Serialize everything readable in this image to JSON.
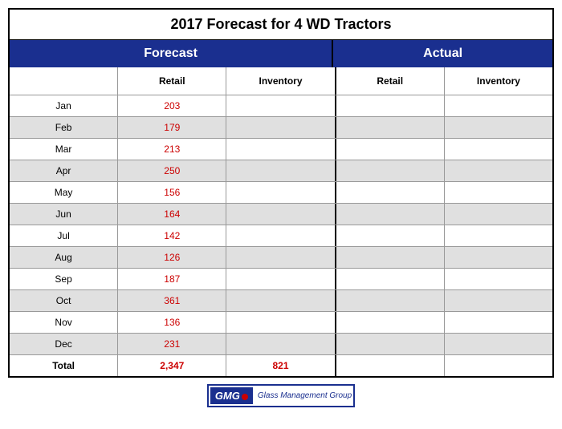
{
  "title": "2017 Forecast for 4 WD Tractors",
  "sections": {
    "forecast": "Forecast",
    "actual": "Actual"
  },
  "columns": {
    "month_blank": "",
    "retail": "Retail",
    "inventory": "Inventory"
  },
  "colors": {
    "header_bg": "#1a2f8f",
    "header_text": "#ffffff",
    "value_text": "#cc0000",
    "row_even": "#e0e0e0",
    "row_odd": "#ffffff",
    "border": "#999999",
    "divider": "#000000"
  },
  "rows": [
    {
      "month": "Jan",
      "retail": "203",
      "inventory": ""
    },
    {
      "month": "Feb",
      "retail": "179",
      "inventory": ""
    },
    {
      "month": "Mar",
      "retail": "213",
      "inventory": ""
    },
    {
      "month": "Apr",
      "retail": "250",
      "inventory": ""
    },
    {
      "month": "May",
      "retail": "156",
      "inventory": ""
    },
    {
      "month": "Jun",
      "retail": "164",
      "inventory": ""
    },
    {
      "month": "Jul",
      "retail": "142",
      "inventory": ""
    },
    {
      "month": "Aug",
      "retail": "126",
      "inventory": ""
    },
    {
      "month": "Sep",
      "retail": "187",
      "inventory": ""
    },
    {
      "month": "Oct",
      "retail": "361",
      "inventory": ""
    },
    {
      "month": "Nov",
      "retail": "136",
      "inventory": ""
    },
    {
      "month": "Dec",
      "retail": "231",
      "inventory": ""
    }
  ],
  "total": {
    "label": "Total",
    "retail": "2,347",
    "inventory": "821"
  },
  "logo": {
    "abbr": "GMG",
    "full": "Glass Management Group"
  }
}
